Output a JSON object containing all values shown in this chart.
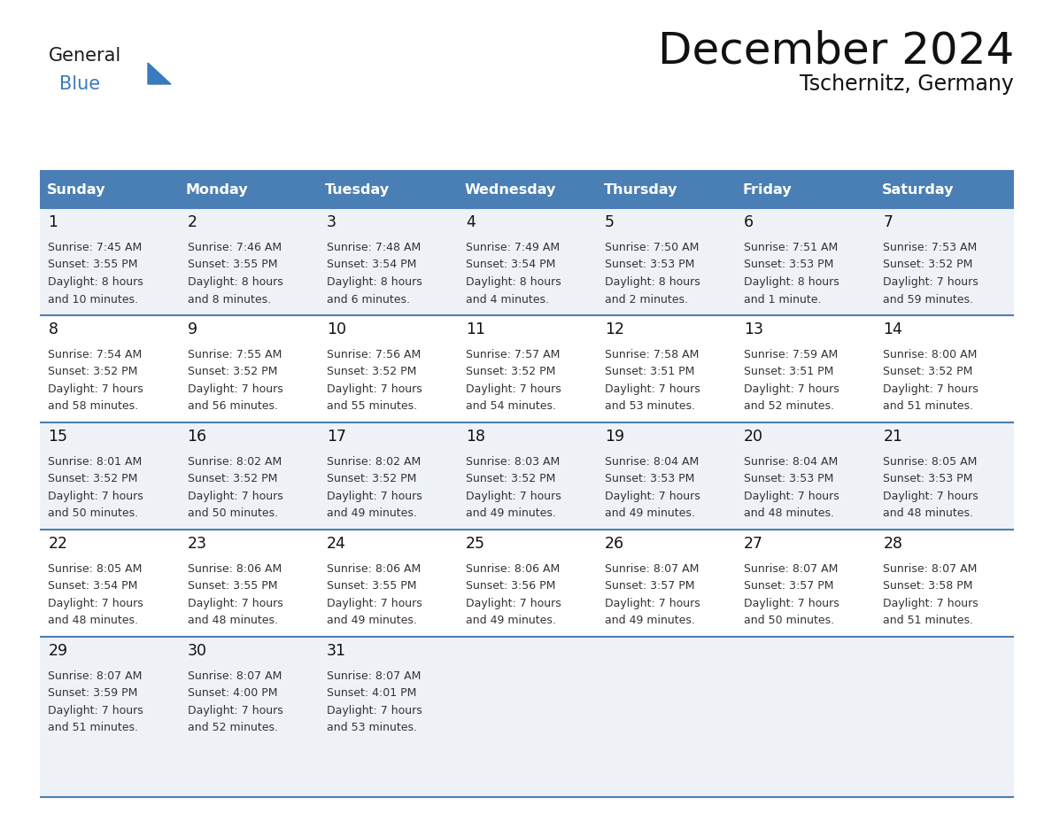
{
  "title": "December 2024",
  "subtitle": "Tschernitz, Germany",
  "days_of_week": [
    "Sunday",
    "Monday",
    "Tuesday",
    "Wednesday",
    "Thursday",
    "Friday",
    "Saturday"
  ],
  "header_bg": "#4a7fb5",
  "header_text": "#ffffff",
  "cell_bg_light": "#eef2f7",
  "cell_bg_white": "#ffffff",
  "row_line_color": "#4a7fb5",
  "text_color": "#333333",
  "day_num_color": "#111111",
  "logo_general_color": "#1a1a1a",
  "logo_blue_color": "#3a7abf",
  "logo_triangle_color": "#3a7abf",
  "calendar_data": [
    [
      {
        "day": 1,
        "sunrise": "7:45 AM",
        "sunset": "3:55 PM",
        "daylight_h": "8 hours",
        "daylight_m": "10 minutes"
      },
      {
        "day": 2,
        "sunrise": "7:46 AM",
        "sunset": "3:55 PM",
        "daylight_h": "8 hours",
        "daylight_m": "8 minutes"
      },
      {
        "day": 3,
        "sunrise": "7:48 AM",
        "sunset": "3:54 PM",
        "daylight_h": "8 hours",
        "daylight_m": "6 minutes"
      },
      {
        "day": 4,
        "sunrise": "7:49 AM",
        "sunset": "3:54 PM",
        "daylight_h": "8 hours",
        "daylight_m": "4 minutes"
      },
      {
        "day": 5,
        "sunrise": "7:50 AM",
        "sunset": "3:53 PM",
        "daylight_h": "8 hours",
        "daylight_m": "2 minutes"
      },
      {
        "day": 6,
        "sunrise": "7:51 AM",
        "sunset": "3:53 PM",
        "daylight_h": "8 hours",
        "daylight_m": "1 minute"
      },
      {
        "day": 7,
        "sunrise": "7:53 AM",
        "sunset": "3:52 PM",
        "daylight_h": "7 hours",
        "daylight_m": "59 minutes"
      }
    ],
    [
      {
        "day": 8,
        "sunrise": "7:54 AM",
        "sunset": "3:52 PM",
        "daylight_h": "7 hours",
        "daylight_m": "58 minutes"
      },
      {
        "day": 9,
        "sunrise": "7:55 AM",
        "sunset": "3:52 PM",
        "daylight_h": "7 hours",
        "daylight_m": "56 minutes"
      },
      {
        "day": 10,
        "sunrise": "7:56 AM",
        "sunset": "3:52 PM",
        "daylight_h": "7 hours",
        "daylight_m": "55 minutes"
      },
      {
        "day": 11,
        "sunrise": "7:57 AM",
        "sunset": "3:52 PM",
        "daylight_h": "7 hours",
        "daylight_m": "54 minutes"
      },
      {
        "day": 12,
        "sunrise": "7:58 AM",
        "sunset": "3:51 PM",
        "daylight_h": "7 hours",
        "daylight_m": "53 minutes"
      },
      {
        "day": 13,
        "sunrise": "7:59 AM",
        "sunset": "3:51 PM",
        "daylight_h": "7 hours",
        "daylight_m": "52 minutes"
      },
      {
        "day": 14,
        "sunrise": "8:00 AM",
        "sunset": "3:52 PM",
        "daylight_h": "7 hours",
        "daylight_m": "51 minutes"
      }
    ],
    [
      {
        "day": 15,
        "sunrise": "8:01 AM",
        "sunset": "3:52 PM",
        "daylight_h": "7 hours",
        "daylight_m": "50 minutes"
      },
      {
        "day": 16,
        "sunrise": "8:02 AM",
        "sunset": "3:52 PM",
        "daylight_h": "7 hours",
        "daylight_m": "50 minutes"
      },
      {
        "day": 17,
        "sunrise": "8:02 AM",
        "sunset": "3:52 PM",
        "daylight_h": "7 hours",
        "daylight_m": "49 minutes"
      },
      {
        "day": 18,
        "sunrise": "8:03 AM",
        "sunset": "3:52 PM",
        "daylight_h": "7 hours",
        "daylight_m": "49 minutes"
      },
      {
        "day": 19,
        "sunrise": "8:04 AM",
        "sunset": "3:53 PM",
        "daylight_h": "7 hours",
        "daylight_m": "49 minutes"
      },
      {
        "day": 20,
        "sunrise": "8:04 AM",
        "sunset": "3:53 PM",
        "daylight_h": "7 hours",
        "daylight_m": "48 minutes"
      },
      {
        "day": 21,
        "sunrise": "8:05 AM",
        "sunset": "3:53 PM",
        "daylight_h": "7 hours",
        "daylight_m": "48 minutes"
      }
    ],
    [
      {
        "day": 22,
        "sunrise": "8:05 AM",
        "sunset": "3:54 PM",
        "daylight_h": "7 hours",
        "daylight_m": "48 minutes"
      },
      {
        "day": 23,
        "sunrise": "8:06 AM",
        "sunset": "3:55 PM",
        "daylight_h": "7 hours",
        "daylight_m": "48 minutes"
      },
      {
        "day": 24,
        "sunrise": "8:06 AM",
        "sunset": "3:55 PM",
        "daylight_h": "7 hours",
        "daylight_m": "49 minutes"
      },
      {
        "day": 25,
        "sunrise": "8:06 AM",
        "sunset": "3:56 PM",
        "daylight_h": "7 hours",
        "daylight_m": "49 minutes"
      },
      {
        "day": 26,
        "sunrise": "8:07 AM",
        "sunset": "3:57 PM",
        "daylight_h": "7 hours",
        "daylight_m": "49 minutes"
      },
      {
        "day": 27,
        "sunrise": "8:07 AM",
        "sunset": "3:57 PM",
        "daylight_h": "7 hours",
        "daylight_m": "50 minutes"
      },
      {
        "day": 28,
        "sunrise": "8:07 AM",
        "sunset": "3:58 PM",
        "daylight_h": "7 hours",
        "daylight_m": "51 minutes"
      }
    ],
    [
      {
        "day": 29,
        "sunrise": "8:07 AM",
        "sunset": "3:59 PM",
        "daylight_h": "7 hours",
        "daylight_m": "51 minutes"
      },
      {
        "day": 30,
        "sunrise": "8:07 AM",
        "sunset": "4:00 PM",
        "daylight_h": "7 hours",
        "daylight_m": "52 minutes"
      },
      {
        "day": 31,
        "sunrise": "8:07 AM",
        "sunset": "4:01 PM",
        "daylight_h": "7 hours",
        "daylight_m": "53 minutes"
      },
      null,
      null,
      null,
      null
    ]
  ]
}
